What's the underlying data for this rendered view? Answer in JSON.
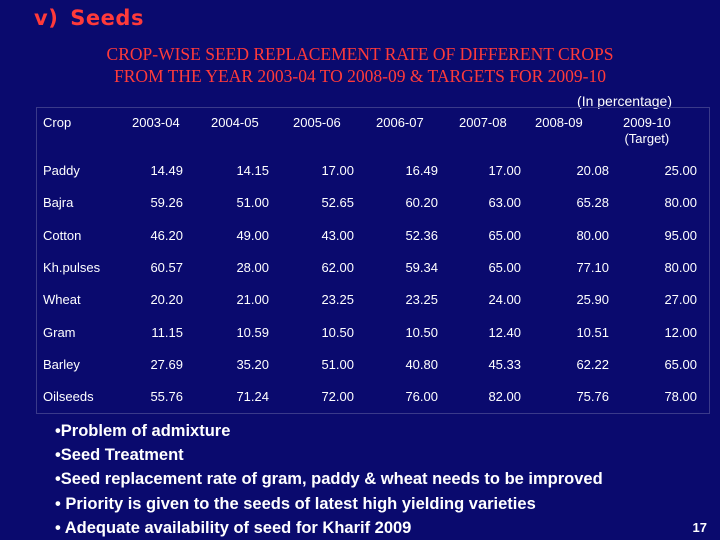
{
  "heading": {
    "number": "v)",
    "label": "Seeds"
  },
  "title": {
    "line1": "CROP-WISE SEED REPLACEMENT RATE OF DIFFERENT CROPS",
    "line2": "FROM THE YEAR 2003-04 TO 2008-09 & TARGETS FOR 2009-10"
  },
  "unit_note": "(In percentage)",
  "table": {
    "headers": {
      "crop": "Crop",
      "y2003": "2003-04",
      "y2004": "2004-05",
      "y2005": "2005-06",
      "y2006": "2006-07",
      "y2007": "2007-08",
      "y2008": "2008-09",
      "y2009": "2009-10",
      "y2009_sub": "(Target)"
    },
    "rows": [
      {
        "crop": "Paddy",
        "v": [
          "14.49",
          "14.15",
          "17.00",
          "16.49",
          "17.00",
          "20.08",
          "25.00"
        ]
      },
      {
        "crop": "Bajra",
        "v": [
          "59.26",
          "51.00",
          "52.65",
          "60.20",
          "63.00",
          "65.28",
          "80.00"
        ]
      },
      {
        "crop": "Cotton",
        "v": [
          "46.20",
          "49.00",
          "43.00",
          "52.36",
          "65.00",
          "80.00",
          "95.00"
        ]
      },
      {
        "crop": "Kh.pulses",
        "v": [
          "60.57",
          "28.00",
          "62.00",
          "59.34",
          "65.00",
          "77.10",
          "80.00"
        ]
      },
      {
        "crop": "Wheat",
        "v": [
          "20.20",
          "21.00",
          "23.25",
          "23.25",
          "24.00",
          "25.90",
          "27.00"
        ]
      },
      {
        "crop": "Gram",
        "v": [
          "11.15",
          "10.59",
          "10.50",
          "10.50",
          "12.40",
          "10.51",
          "12.00"
        ]
      },
      {
        "crop": "Barley",
        "v": [
          "27.69",
          "35.20",
          "51.00",
          "40.80",
          "45.33",
          "62.22",
          "65.00"
        ]
      },
      {
        "crop": "Oilseeds",
        "v": [
          "55.76",
          "71.24",
          "72.00",
          "76.00",
          "82.00",
          "75.76",
          "78.00"
        ]
      }
    ]
  },
  "notes": [
    "•Problem of admixture",
    "•Seed Treatment",
    "•Seed replacement rate of gram, paddy & wheat  needs to be improved",
    "• Priority is given to the seeds of latest high yielding varieties",
    "• Adequate availability of seed for Kharif 2009"
  ],
  "page_number": "17"
}
